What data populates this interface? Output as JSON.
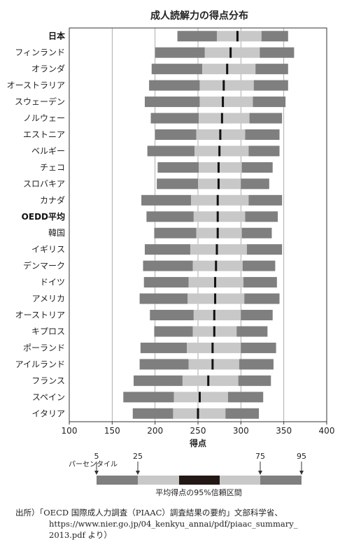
{
  "chart_data": {
    "type": "bar",
    "title": "成人読解力の得点分布",
    "xlabel": "得点",
    "xlim": [
      100,
      400
    ],
    "xticks": [
      100,
      150,
      200,
      250,
      300,
      350,
      400
    ],
    "highlight_categories": [
      "日本",
      "OEDD平均"
    ],
    "colors": {
      "outer": "#7f7f7f",
      "inner": "#c8c8c8",
      "ci": "#231815",
      "mean": "#111111"
    },
    "categories": [
      "日本",
      "フィンランド",
      "オランダ",
      "オーストラリア",
      "スウェーデン",
      "ノルウェー",
      "エストニア",
      "ベルギー",
      "チェコ",
      "スロバキア",
      "カナダ",
      "OEDD平均",
      "韓国",
      "イギリス",
      "デンマーク",
      "ドイツ",
      "アメリカ",
      "オーストリア",
      "キプロス",
      "ポーランド",
      "アイルランド",
      "フランス",
      "スペイン",
      "イタリア"
    ],
    "series": [
      {
        "name": "5",
        "values": [
          226,
          200,
          196,
          193,
          188,
          195,
          200,
          191,
          203,
          202,
          184,
          190,
          199,
          188,
          186,
          187,
          182,
          194,
          199,
          183,
          182,
          175,
          163,
          174
        ]
      },
      {
        "name": "25",
        "values": [
          272,
          258,
          255,
          252,
          252,
          251,
          248,
          246,
          251,
          250,
          242,
          245,
          248,
          241,
          244,
          239,
          238,
          245,
          244,
          237,
          239,
          232,
          222,
          221
        ]
      },
      {
        "name": "平均",
        "values": [
          296,
          288,
          284,
          280,
          279,
          278,
          276,
          275,
          274,
          274,
          273,
          273,
          273,
          272,
          271,
          270,
          270,
          269,
          269,
          267,
          267,
          262,
          252,
          250
        ]
      },
      {
        "name": "75",
        "values": [
          324,
          322,
          317,
          315,
          314,
          310,
          305,
          309,
          301,
          300,
          309,
          305,
          301,
          307,
          302,
          303,
          304,
          300,
          295,
          300,
          298,
          297,
          285,
          282
        ]
      },
      {
        "name": "95",
        "values": [
          355,
          362,
          355,
          355,
          352,
          348,
          345,
          345,
          337,
          333,
          348,
          343,
          336,
          348,
          340,
          342,
          345,
          337,
          331,
          341,
          338,
          335,
          326,
          321
        ]
      }
    ]
  },
  "legend": {
    "p5": "5",
    "p25": "25",
    "p75": "75",
    "p95": "95",
    "percentile_label": "パーセンタイル",
    "ci_label": "平均得点の95%信頼区間"
  },
  "source": {
    "line1": "出所）「OECD 国際成人力調査（PIAAC）調査結果の要約」文部科学省、",
    "line2": "https://www.nier.go.jp/04_kenkyu_annai/pdf/piaac_summary_",
    "line3": "2013.pdf より）"
  }
}
